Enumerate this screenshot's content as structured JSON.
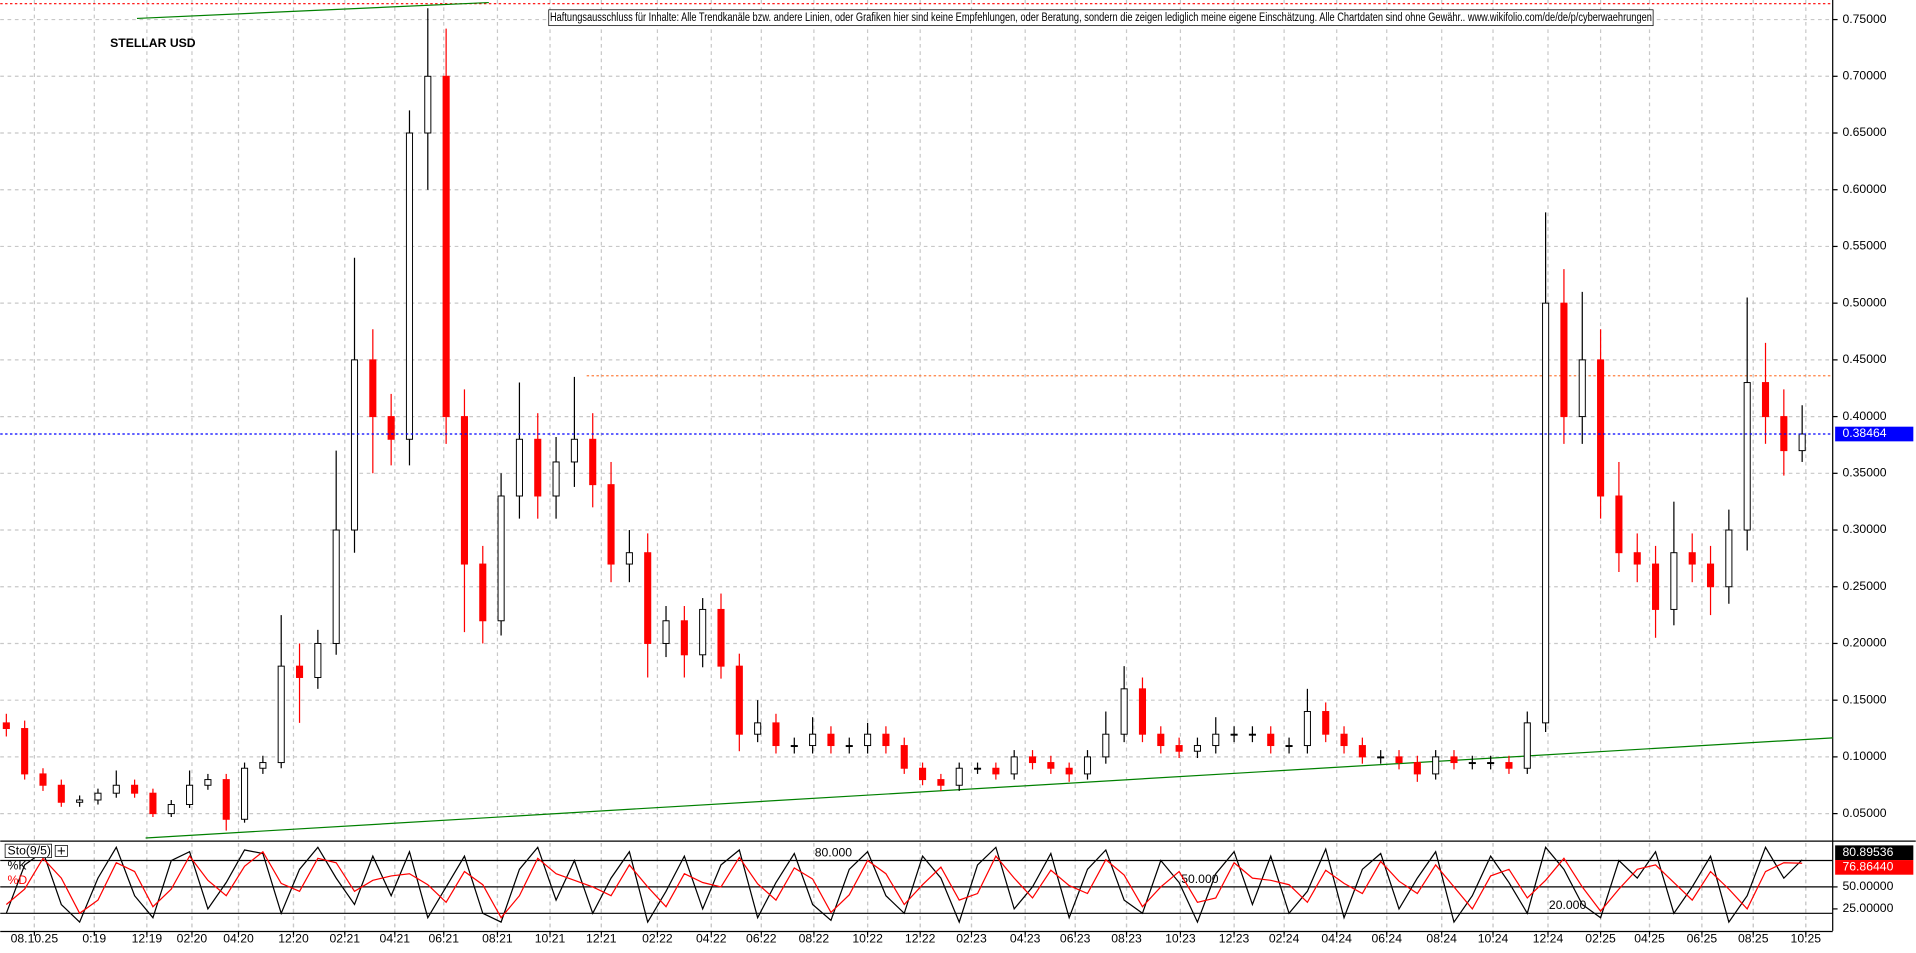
{
  "chart_data": [
    {
      "type": "candlestick",
      "title": "STELLAR USD",
      "disclaimer": "Haftungsausschluss für Inhalte: Alle Trendkanäle bzw. andere Linien, oder Grafiken hier sind keine Empfehlungen, oder Beratung, sondern die zeigen lediglich meine eigene Einschätzung. Alle Chartdaten sind ohne Gewähr.. www.wikifolio.com/de/de/p/cyberwaehrungen",
      "open": [
        0.13,
        0.125,
        0.085,
        0.075,
        0.06,
        0.062,
        0.068,
        0.075,
        0.068,
        0.05,
        0.058,
        0.075,
        0.08,
        0.045,
        0.09,
        0.095,
        0.18,
        0.17,
        0.2,
        0.3,
        0.45,
        0.4,
        0.38,
        0.65,
        0.7,
        0.4,
        0.27,
        0.22,
        0.33,
        0.38,
        0.33,
        0.36,
        0.38,
        0.34,
        0.27,
        0.28,
        0.2,
        0.22,
        0.19,
        0.23,
        0.18,
        0.12,
        0.13,
        0.11,
        0.11,
        0.12,
        0.11,
        0.11,
        0.12,
        0.11,
        0.09,
        0.08,
        0.075,
        0.09,
        0.09,
        0.085,
        0.1,
        0.095,
        0.09,
        0.085,
        0.1,
        0.12,
        0.16,
        0.12,
        0.11,
        0.105,
        0.11,
        0.12,
        0.12,
        0.12,
        0.11,
        0.11,
        0.14,
        0.12,
        0.11,
        0.1,
        0.1,
        0.095,
        0.085,
        0.1,
        0.095,
        0.095,
        0.095,
        0.09,
        0.13,
        0.5,
        0.4,
        0.45,
        0.33,
        0.28,
        0.27,
        0.23,
        0.28,
        0.27,
        0.25,
        0.3,
        0.43,
        0.4,
        0.37
      ],
      "high": [
        0.138,
        0.132,
        0.09,
        0.08,
        0.066,
        0.072,
        0.088,
        0.08,
        0.072,
        0.062,
        0.088,
        0.085,
        0.085,
        0.095,
        0.101,
        0.225,
        0.2,
        0.212,
        0.37,
        0.54,
        0.477,
        0.42,
        0.67,
        0.76,
        0.742,
        0.424,
        0.286,
        0.35,
        0.43,
        0.403,
        0.382,
        0.435,
        0.403,
        0.36,
        0.3,
        0.297,
        0.233,
        0.233,
        0.24,
        0.244,
        0.191,
        0.15,
        0.138,
        0.117,
        0.135,
        0.127,
        0.117,
        0.13,
        0.127,
        0.117,
        0.095,
        0.085,
        0.095,
        0.095,
        0.095,
        0.106,
        0.106,
        0.101,
        0.095,
        0.106,
        0.14,
        0.18,
        0.17,
        0.127,
        0.117,
        0.117,
        0.135,
        0.127,
        0.127,
        0.127,
        0.117,
        0.16,
        0.148,
        0.127,
        0.117,
        0.106,
        0.106,
        0.101,
        0.106,
        0.106,
        0.101,
        0.101,
        0.101,
        0.14,
        0.58,
        0.53,
        0.51,
        0.477,
        0.36,
        0.297,
        0.286,
        0.325,
        0.297,
        0.286,
        0.318,
        0.505,
        0.465,
        0.424,
        0.41
      ],
      "low": [
        0.118,
        0.08,
        0.07,
        0.056,
        0.056,
        0.058,
        0.064,
        0.064,
        0.047,
        0.047,
        0.055,
        0.071,
        0.035,
        0.042,
        0.085,
        0.09,
        0.13,
        0.16,
        0.19,
        0.28,
        0.35,
        0.357,
        0.357,
        0.6,
        0.376,
        0.21,
        0.2,
        0.207,
        0.31,
        0.31,
        0.31,
        0.338,
        0.32,
        0.254,
        0.254,
        0.17,
        0.188,
        0.17,
        0.179,
        0.169,
        0.105,
        0.113,
        0.103,
        0.103,
        0.103,
        0.103,
        0.103,
        0.103,
        0.103,
        0.085,
        0.075,
        0.07,
        0.07,
        0.085,
        0.08,
        0.08,
        0.089,
        0.085,
        0.078,
        0.08,
        0.094,
        0.113,
        0.113,
        0.103,
        0.099,
        0.099,
        0.103,
        0.113,
        0.113,
        0.103,
        0.103,
        0.103,
        0.113,
        0.103,
        0.094,
        0.094,
        0.089,
        0.078,
        0.08,
        0.089,
        0.089,
        0.089,
        0.085,
        0.085,
        0.122,
        0.376,
        0.376,
        0.31,
        0.263,
        0.254,
        0.205,
        0.216,
        0.254,
        0.225,
        0.235,
        0.282,
        0.376,
        0.348,
        0.36
      ],
      "close": [
        0.125,
        0.085,
        0.075,
        0.06,
        0.062,
        0.068,
        0.075,
        0.068,
        0.05,
        0.058,
        0.075,
        0.08,
        0.045,
        0.09,
        0.095,
        0.18,
        0.17,
        0.2,
        0.3,
        0.45,
        0.4,
        0.38,
        0.65,
        0.7,
        0.4,
        0.27,
        0.22,
        0.33,
        0.38,
        0.33,
        0.36,
        0.38,
        0.34,
        0.27,
        0.28,
        0.2,
        0.22,
        0.19,
        0.23,
        0.18,
        0.12,
        0.13,
        0.11,
        0.11,
        0.12,
        0.11,
        0.11,
        0.12,
        0.11,
        0.09,
        0.08,
        0.075,
        0.09,
        0.09,
        0.085,
        0.1,
        0.095,
        0.09,
        0.085,
        0.1,
        0.12,
        0.16,
        0.12,
        0.11,
        0.105,
        0.11,
        0.12,
        0.12,
        0.12,
        0.11,
        0.11,
        0.14,
        0.12,
        0.11,
        0.1,
        0.1,
        0.095,
        0.085,
        0.1,
        0.095,
        0.095,
        0.095,
        0.09,
        0.13,
        0.5,
        0.4,
        0.45,
        0.33,
        0.28,
        0.27,
        0.23,
        0.28,
        0.27,
        0.25,
        0.3,
        0.43,
        0.4,
        0.37,
        0.38464
      ],
      "up_color": "#000000",
      "down_color": "#ff0000",
      "last_price_color": "#0000ff",
      "xlim": [
        -0.3333,
        99.6667
      ],
      "xticks": [
        {
          "value": 1.53,
          "label": "08.10.25"
        },
        {
          "value": 4.8,
          "label": "0:19"
        },
        {
          "value": 7.67,
          "label": "12:19"
        },
        {
          "value": 10.13,
          "label": "02:20"
        },
        {
          "value": 12.67,
          "label": "04:20"
        },
        {
          "value": 15.67,
          "label": "12:20"
        },
        {
          "value": 18.47,
          "label": "02:21"
        },
        {
          "value": 21.2,
          "label": "04:21"
        },
        {
          "value": 23.87,
          "label": "06:21"
        },
        {
          "value": 26.8,
          "label": "08:21"
        },
        {
          "value": 29.67,
          "label": "10:21"
        },
        {
          "value": 32.47,
          "label": "12:21"
        },
        {
          "value": 35.53,
          "label": "02:22"
        },
        {
          "value": 38.47,
          "label": "04:22"
        },
        {
          "value": 41.2,
          "label": "06:22"
        },
        {
          "value": 44.07,
          "label": "08:22"
        },
        {
          "value": 47,
          "label": "10:22"
        },
        {
          "value": 49.87,
          "label": "12:22"
        },
        {
          "value": 52.67,
          "label": "02:23"
        },
        {
          "value": 55.6,
          "label": "04:23"
        },
        {
          "value": 58.33,
          "label": "06:23"
        },
        {
          "value": 61.13,
          "label": "08:23"
        },
        {
          "value": 64.07,
          "label": "10:23"
        },
        {
          "value": 67,
          "label": "12:23"
        },
        {
          "value": 69.73,
          "label": "02:24"
        },
        {
          "value": 72.6,
          "label": "04:24"
        },
        {
          "value": 75.33,
          "label": "06:24"
        },
        {
          "value": 78.33,
          "label": "08:24"
        },
        {
          "value": 81.13,
          "label": "10:24"
        },
        {
          "value": 84.13,
          "label": "12:24"
        },
        {
          "value": 87,
          "label": "02:25"
        },
        {
          "value": 89.67,
          "label": "04:25"
        },
        {
          "value": 92.53,
          "label": "06:25"
        },
        {
          "value": 95.33,
          "label": "08:25"
        },
        {
          "value": 98.2,
          "label": "10:25"
        }
      ],
      "ylim": [
        0.0263,
        0.7651
      ],
      "yticks": [
        {
          "value": 0.05,
          "label": "0.05000"
        },
        {
          "value": 0.1,
          "label": "0.10000"
        },
        {
          "value": 0.15,
          "label": "0.15000"
        },
        {
          "value": 0.2,
          "label": "0.20000"
        },
        {
          "value": 0.25,
          "label": "0.25000"
        },
        {
          "value": 0.3,
          "label": "0.30000"
        },
        {
          "value": 0.35,
          "label": "0.35000"
        },
        {
          "value": 0.4,
          "label": "0.40000"
        },
        {
          "value": 0.45,
          "label": "0.45000"
        },
        {
          "value": 0.5,
          "label": "0.50000"
        },
        {
          "value": 0.55,
          "label": "0.55000"
        },
        {
          "value": 0.6,
          "label": "0.60000"
        },
        {
          "value": 0.65,
          "label": "0.65000"
        },
        {
          "value": 0.7,
          "label": "0.70000"
        },
        {
          "value": 0.75,
          "label": "0.75000"
        }
      ],
      "grid": true,
      "trendlines": [
        {
          "points": [
            [
              7.6,
              0.0285
            ],
            [
              99.67,
              0.1168
            ]
          ],
          "color": "#008000"
        },
        {
          "points": [
            [
              7.13,
              0.751
            ],
            [
              26.33,
              0.765
            ]
          ],
          "color": "#008000"
        }
      ],
      "hlines": [
        {
          "value": 0.436,
          "from": 31.67,
          "color": "#ff8040"
        },
        {
          "value": 0.764,
          "from": -0.3333,
          "color": "#ff0000"
        }
      ]
    },
    {
      "type": "line",
      "title": "Sto(9/5)",
      "series": [
        {
          "name": "%K",
          "color": "#000000",
          "last_label": "80.89536",
          "values": [
            20,
            75,
            90,
            30,
            10,
            60,
            95,
            40,
            15,
            80,
            90,
            25,
            55,
            92,
            88,
            20,
            70,
            95,
            60,
            30,
            85,
            40,
            90,
            15,
            50,
            85,
            20,
            10,
            70,
            95,
            35,
            80,
            20,
            60,
            90,
            10,
            45,
            85,
            25,
            75,
            92,
            15,
            55,
            88,
            30,
            12,
            70,
            90,
            40,
            20,
            85,
            60,
            10,
            75,
            95,
            25,
            50,
            88,
            15,
            70,
            92,
            35,
            20,
            80,
            55,
            10,
            65,
            90,
            30,
            85,
            20,
            45,
            93,
            15,
            70,
            88,
            25,
            60,
            90,
            10,
            40,
            85,
            55,
            20,
            95,
            70,
            30,
            15,
            80,
            60,
            90,
            20,
            50,
            85,
            10,
            40,
            95,
            60,
            80.89536
          ]
        },
        {
          "name": "%D",
          "color": "#ff0000",
          "last_label": "76.86440",
          "values": [
            30,
            47.5,
            82.5,
            60,
            20,
            35,
            77.5,
            67.5,
            27.5,
            47.5,
            85,
            57.5,
            40,
            73.5,
            90,
            54,
            45,
            82.5,
            77.5,
            45,
            57.5,
            62.5,
            65,
            52.5,
            32.5,
            67.5,
            52.5,
            15,
            40,
            82.5,
            65,
            57.5,
            50,
            40,
            75,
            50,
            27.5,
            65,
            55,
            50,
            83.5,
            53.5,
            35,
            71.5,
            59,
            21,
            41,
            80,
            65,
            30,
            52.5,
            72.5,
            35,
            42.5,
            85,
            60,
            37.5,
            69,
            51.5,
            42.5,
            81,
            63.5,
            27.5,
            50,
            67.5,
            32.5,
            37.5,
            77.5,
            60,
            57.5,
            52.5,
            32.5,
            69,
            54,
            42.5,
            79,
            56.5,
            42.5,
            75,
            50,
            25,
            62.5,
            70,
            37.5,
            57.5,
            82.5,
            50,
            22.5,
            47.5,
            70,
            75,
            55,
            35,
            67.5,
            47.5,
            25,
            67.5,
            77.5,
            76.8644
          ]
        }
      ],
      "xlim": [
        -0.3333,
        99.6667
      ],
      "ylim": [
        0,
        100
      ],
      "levels": [
        {
          "value": 80,
          "label": "80.000"
        },
        {
          "value": 50,
          "label": "50.000"
        },
        {
          "value": 20,
          "label": "20.000"
        }
      ],
      "yticks": [
        {
          "value": 50,
          "label": "50.00000"
        },
        {
          "value": 25,
          "label": "25.00000"
        }
      ]
    }
  ]
}
